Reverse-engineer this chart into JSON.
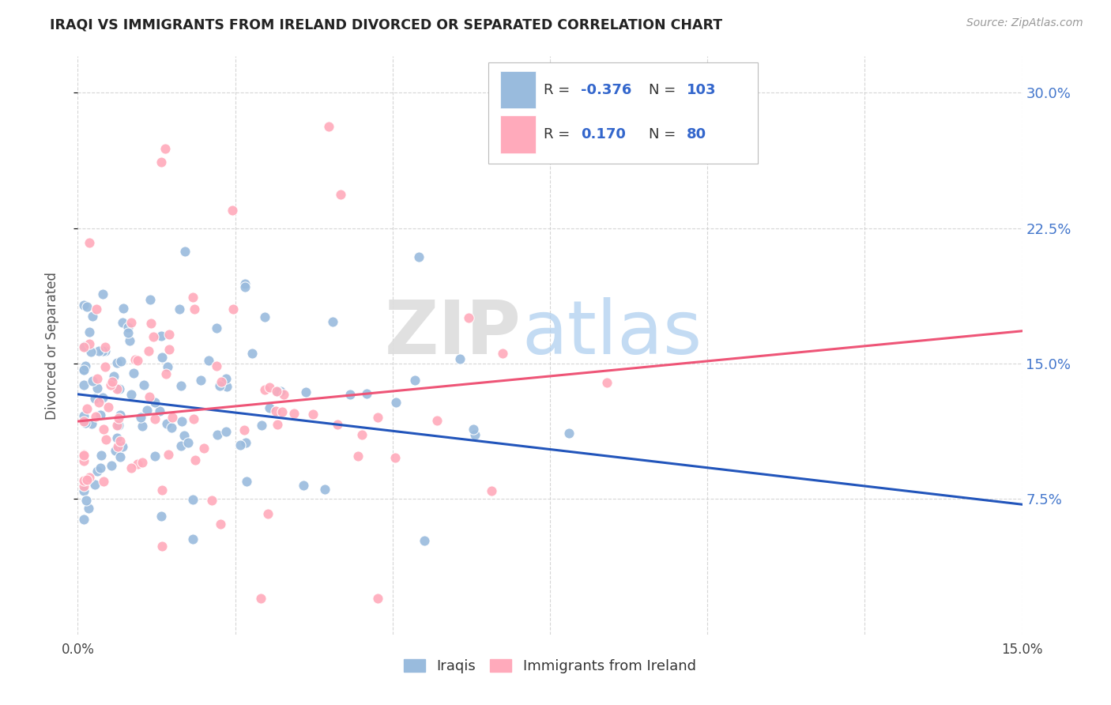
{
  "title": "IRAQI VS IMMIGRANTS FROM IRELAND DIVORCED OR SEPARATED CORRELATION CHART",
  "source": "Source: ZipAtlas.com",
  "ylabel": "Divorced or Separated",
  "ytick_labels": [
    "7.5%",
    "15.0%",
    "22.5%",
    "30.0%"
  ],
  "ytick_values": [
    0.075,
    0.15,
    0.225,
    0.3
  ],
  "xlim": [
    0.0,
    0.15
  ],
  "ylim": [
    0.0,
    0.32
  ],
  "iraqis_R": "-0.376",
  "iraqis_N": "103",
  "ireland_R": "0.170",
  "ireland_N": "80",
  "iraqis_color": "#99BBDD",
  "ireland_color": "#FFAABB",
  "iraqis_line_color": "#2255BB",
  "ireland_line_color": "#EE5577",
  "iraqis_line_y0": 0.133,
  "iraqis_line_y1": 0.072,
  "ireland_line_y0": 0.118,
  "ireland_line_y1": 0.168,
  "watermark_zip": "ZIP",
  "watermark_atlas": "atlas",
  "legend_iraqis_label": "Iraqis",
  "legend_ireland_label": "Immigrants from Ireland",
  "seed_iraqis": 42,
  "seed_ireland": 99
}
